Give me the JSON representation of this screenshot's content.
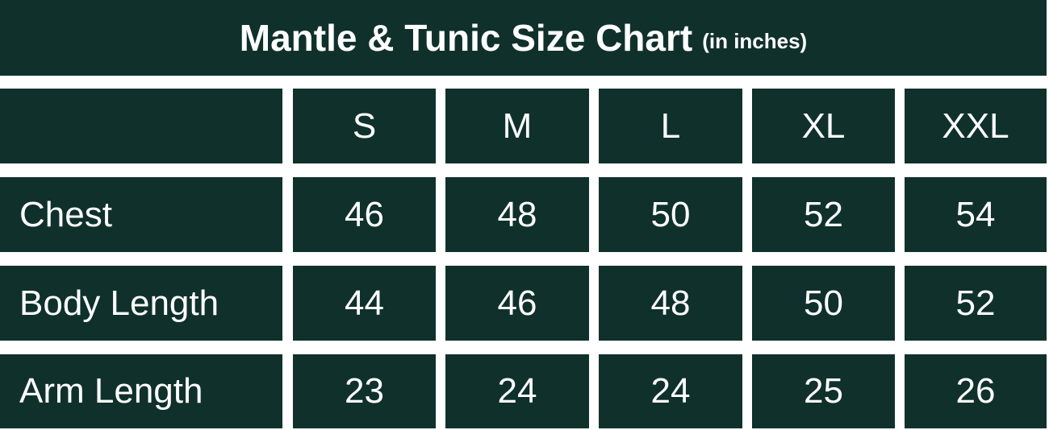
{
  "title": "Mantle & Tunic Size Chart",
  "subtitle": "(in inches)",
  "colors": {
    "background": "#10312b",
    "text": "#ffffff",
    "gap": "#ffffff"
  },
  "chart_data": {
    "type": "table",
    "title": "Mantle & Tunic Size Chart",
    "subtitle": "(in inches)",
    "columns": [
      "S",
      "M",
      "L",
      "XL",
      "XXL"
    ],
    "rows": [
      {
        "label": "Chest",
        "values": [
          "46",
          "48",
          "50",
          "52",
          "54"
        ]
      },
      {
        "label": "Body Length",
        "values": [
          "44",
          "46",
          "48",
          "50",
          "52"
        ]
      },
      {
        "label": "Arm Length",
        "values": [
          "23",
          "24",
          "24",
          "25",
          "26"
        ]
      }
    ]
  }
}
